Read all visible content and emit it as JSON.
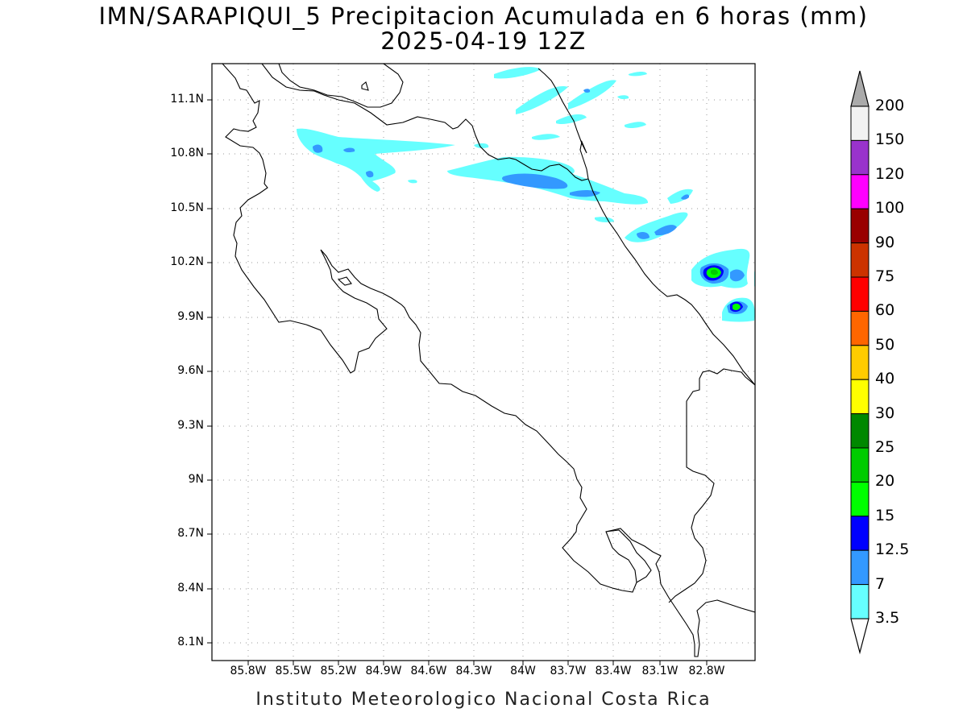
{
  "header": {
    "title": "IMN/SARAPIQUI_5 Precipitacion Acumulada en 6 horas (mm)",
    "subtitle": "2025-04-19 12Z"
  },
  "footer": {
    "credit": "Instituto Meteorologico Nacional Costa Rica"
  },
  "map": {
    "lon_range": [
      -86.0,
      -82.45
    ],
    "lat_range": [
      8.0,
      11.3
    ],
    "grid_lines": "dotted",
    "y_ticks": [
      "11.1N",
      "10.8N",
      "10.5N",
      "10.2N",
      "9.9N",
      "9.6N",
      "9.3N",
      "9N",
      "8.7N",
      "8.4N",
      "8.1N"
    ],
    "x_ticks": [
      "85.8W",
      "85.5W",
      "85.2W",
      "84.9W",
      "84.6W",
      "84.3W",
      "84W",
      "83.7W",
      "83.4W",
      "83.1W",
      "82.8W"
    ],
    "coastline_color": "#000000",
    "precipitation_areas": [
      {
        "level": "3.5-7",
        "color": "#66ffff"
      },
      {
        "level": "7-12.5",
        "color": "#3399ff"
      },
      {
        "level": "12.5-15",
        "color": "#0000ff"
      },
      {
        "level": "15-20",
        "color": "#00ff00"
      },
      {
        "level": "20-25",
        "color": "#00cc00"
      }
    ]
  },
  "colorbar": {
    "levels": [
      "200",
      "150",
      "120",
      "100",
      "90",
      "75",
      "60",
      "50",
      "40",
      "30",
      "25",
      "20",
      "15",
      "12.5",
      "7",
      "3.5"
    ],
    "colors": [
      "#f2f2f2",
      "#9933cc",
      "#ff00ff",
      "#990000",
      "#cc3300",
      "#ff0000",
      "#ff6600",
      "#ffcc00",
      "#ffff00",
      "#008800",
      "#00cc00",
      "#00ff00",
      "#0000ff",
      "#3399ff",
      "#66ffff"
    ],
    "over_color": "#aaaaaa",
    "under_color": "#ffffff"
  }
}
